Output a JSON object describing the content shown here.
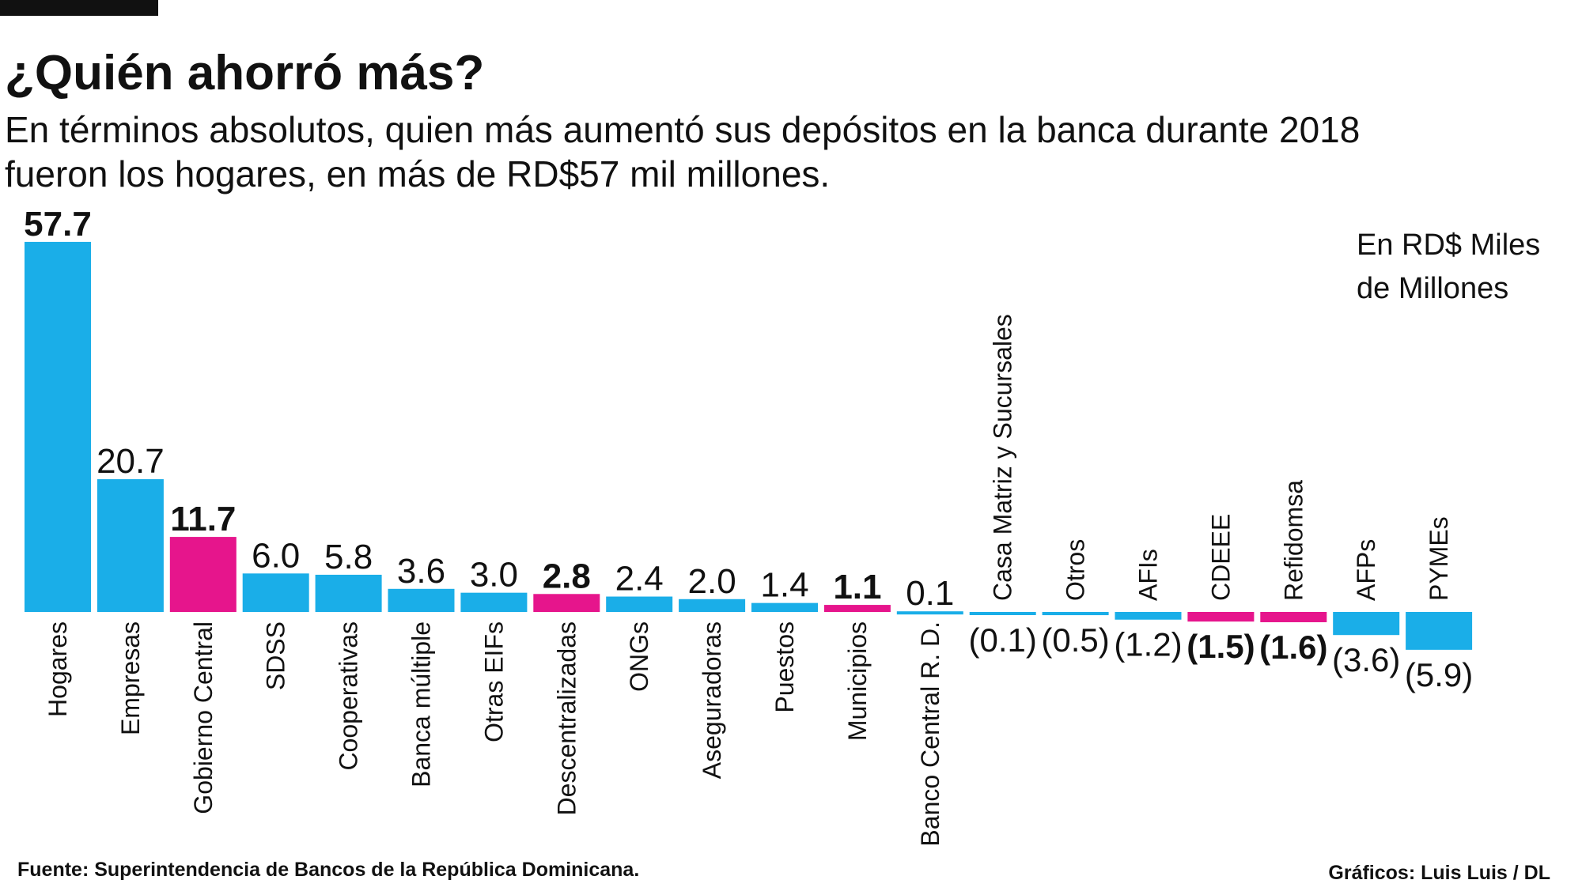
{
  "chart_data": {
    "type": "bar",
    "title": "¿Quién ahorró más?",
    "subtitle": [
      "En términos absolutos, quien más aumentó sus depósitos en la banca durante 2018",
      "fueron los hogares, en más de RD$57 mil millones."
    ],
    "unit_note": [
      "En RD$ Miles",
      "de Millones"
    ],
    "categories": [
      "Hogares",
      "Empresas",
      "Gobierno Central",
      "SDSS",
      "Cooperativas",
      "Banca múltiple",
      "Otras EIFs",
      "Descentralizadas",
      "ONGs",
      "Aseguradoras",
      "Puestos",
      "Municipios",
      "Banco Central R. D.",
      "Casa Matriz y Sucursales",
      "Otros",
      "AFIs",
      "CDEEE",
      "Refidomsa",
      "AFPs",
      "PYMEs"
    ],
    "values": [
      57.7,
      20.7,
      11.7,
      6.0,
      5.8,
      3.6,
      3.0,
      2.8,
      2.4,
      2.0,
      1.4,
      1.1,
      0.1,
      -0.1,
      -0.5,
      -1.2,
      -1.5,
      -1.6,
      -3.6,
      -5.9
    ],
    "value_labels": [
      "57.7",
      "20.7",
      "11.7",
      "6.0",
      "5.8",
      "3.6",
      "3.0",
      "2.8",
      "2.4",
      "2.0",
      "1.4",
      "1.1",
      "0.1",
      "(0.1)",
      "(0.5)",
      "(1.2)",
      "(1.5)",
      "(1.6)",
      "(3.6)",
      "(5.9)"
    ],
    "colors": [
      "#1aaee8",
      "#1aaee8",
      "#e6158c",
      "#1aaee8",
      "#1aaee8",
      "#1aaee8",
      "#1aaee8",
      "#e6158c",
      "#1aaee8",
      "#1aaee8",
      "#1aaee8",
      "#e6158c",
      "#1aaee8",
      "#1aaee8",
      "#1aaee8",
      "#1aaee8",
      "#e6158c",
      "#e6158c",
      "#1aaee8",
      "#1aaee8"
    ],
    "bold_labels": [
      true,
      false,
      true,
      false,
      false,
      false,
      false,
      true,
      false,
      false,
      false,
      true,
      false,
      false,
      false,
      false,
      true,
      true,
      false,
      false
    ],
    "source": "Fuente: Superintendencia de Bancos de la República Dominicana.",
    "credit": "Gráficos: Luis Luis / DL"
  }
}
